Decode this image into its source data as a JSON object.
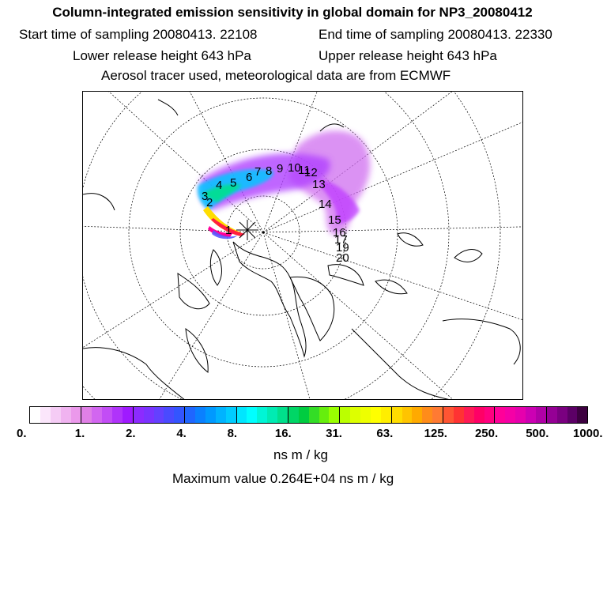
{
  "header": {
    "title": "Column-integrated emission sensitivity in global domain for NP3_20080412",
    "start": "Start time of sampling 20080413. 22108",
    "end": "End time of sampling 20080413. 22330",
    "lower": "Lower release height  643 hPa",
    "upper": "Upper release height  643 hPa",
    "tracer": "Aerosol tracer used, meteorological data are from ECMWF"
  },
  "map": {
    "release_marker": "release-site-star",
    "trajectory_labels": [
      "1",
      "2",
      "3",
      "4",
      "5",
      "6",
      "7",
      "8",
      "9",
      "10",
      "11",
      "12",
      "13",
      "14",
      "15",
      "16",
      "17",
      "19",
      "20"
    ]
  },
  "colorbar": {
    "tick_labels": [
      "0.",
      "1.",
      "2.",
      "4.",
      "8.",
      "16.",
      "31.",
      "63.",
      "125.",
      "250.",
      "500.",
      "1000."
    ],
    "colors": [
      "#ffffff",
      "#fbe6fb",
      "#f5ccf5",
      "#f0b3f0",
      "#eb99eb",
      "#e080e6",
      "#d266f0",
      "#c24df5",
      "#b033fa",
      "#9f1aff",
      "#8c2bff",
      "#7a33ff",
      "#6440ff",
      "#4a4aff",
      "#3355ff",
      "#1f66ff",
      "#0a80ff",
      "#0099ff",
      "#00b3ff",
      "#00ccff",
      "#00e6ff",
      "#00ffff",
      "#00f5d6",
      "#00ebb3",
      "#00e08c",
      "#00d666",
      "#00cc40",
      "#33dd26",
      "#66ee0d",
      "#99ff00",
      "#bbff00",
      "#ddff00",
      "#eeff00",
      "#ffff00",
      "#ffee00",
      "#ffdd00",
      "#ffc400",
      "#ffaa00",
      "#ff8c1a",
      "#ff7a33",
      "#ff5533",
      "#ff3333",
      "#ff1a55",
      "#ff0066",
      "#ff0080",
      "#ff0099",
      "#f500a6",
      "#e600ad",
      "#cc00b3",
      "#b000a6",
      "#950095",
      "#7a0080",
      "#5c0066",
      "#3d0040"
    ],
    "units": "ns m / kg",
    "maximum": "Maximum value  0.264E+04 ns m / kg"
  }
}
